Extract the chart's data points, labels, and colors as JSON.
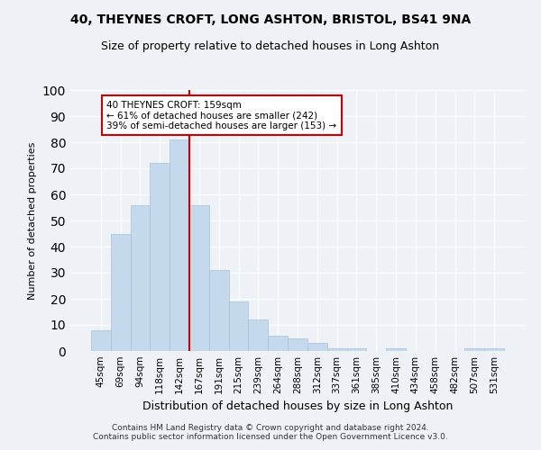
{
  "title": "40, THEYNES CROFT, LONG ASHTON, BRISTOL, BS41 9NA",
  "subtitle": "Size of property relative to detached houses in Long Ashton",
  "xlabel": "Distribution of detached houses by size in Long Ashton",
  "ylabel": "Number of detached properties",
  "footer_line1": "Contains HM Land Registry data © Crown copyright and database right 2024.",
  "footer_line2": "Contains public sector information licensed under the Open Government Licence v3.0.",
  "categories": [
    "45sqm",
    "69sqm",
    "94sqm",
    "118sqm",
    "142sqm",
    "167sqm",
    "191sqm",
    "215sqm",
    "239sqm",
    "264sqm",
    "288sqm",
    "312sqm",
    "337sqm",
    "361sqm",
    "385sqm",
    "410sqm",
    "434sqm",
    "458sqm",
    "482sqm",
    "507sqm",
    "531sqm"
  ],
  "values": [
    8,
    45,
    56,
    72,
    81,
    56,
    31,
    19,
    12,
    6,
    5,
    3,
    1,
    1,
    0,
    1,
    0,
    0,
    0,
    1,
    1
  ],
  "bar_color": "#c5d9ed",
  "bar_edge_color": "#aabfd8",
  "vline_x": 4.5,
  "vline_color": "#cc0000",
  "annotation_text": "40 THEYNES CROFT: 159sqm\n← 61% of detached houses are smaller (242)\n39% of semi-detached houses are larger (153) →",
  "annotation_box_color": "#ffffff",
  "annotation_box_edge_color": "#cc0000",
  "background_color": "#eef2f7",
  "ylim": [
    0,
    100
  ],
  "yticks": [
    0,
    10,
    20,
    30,
    40,
    50,
    60,
    70,
    80,
    90,
    100
  ],
  "title_fontsize": 10,
  "subtitle_fontsize": 9,
  "ylabel_fontsize": 8,
  "xlabel_fontsize": 9,
  "tick_fontsize": 7.5,
  "footer_fontsize": 6.5
}
